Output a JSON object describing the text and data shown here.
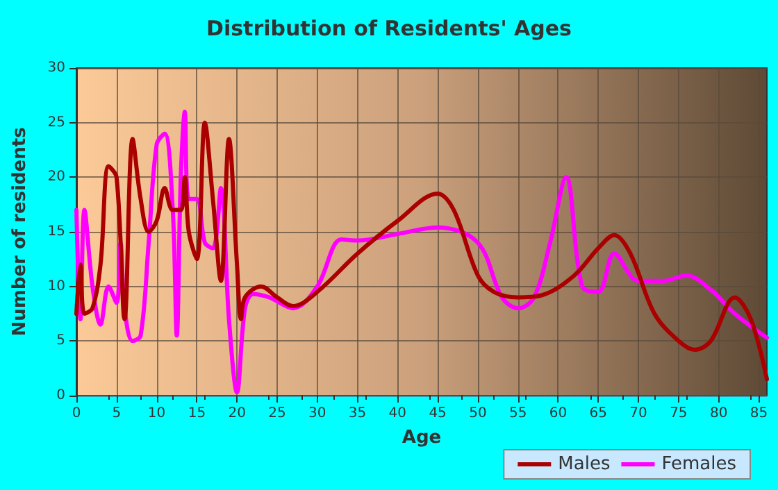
{
  "chart_data": {
    "type": "line",
    "title": "Distribution of Residents' Ages",
    "xlabel": "Age",
    "ylabel": "Number of residents",
    "xlim": [
      0,
      86
    ],
    "xticks": [
      0,
      5,
      10,
      15,
      20,
      25,
      30,
      35,
      40,
      45,
      50,
      55,
      60,
      65,
      70,
      75,
      80,
      85
    ],
    "ylim": [
      0,
      30
    ],
    "yticks": [
      0,
      5,
      10,
      15,
      20,
      25,
      30
    ],
    "grid": true,
    "legend": "bottom right",
    "marker": "none",
    "line_style": "solid",
    "series": [
      {
        "name": "Males",
        "color": "#aa0000",
        "x": [
          0,
          0.5,
          1,
          2,
          3,
          4,
          5,
          6,
          7,
          8,
          9,
          10,
          11,
          12,
          13,
          13.5,
          14,
          15,
          16,
          17,
          18,
          19,
          20,
          20.5,
          21,
          23,
          25,
          27,
          30,
          35,
          40,
          45,
          47,
          50,
          52,
          55,
          58,
          62,
          65,
          67,
          69,
          72,
          75,
          77,
          79,
          82,
          84,
          86
        ],
        "values": [
          7.5,
          12,
          7.5,
          8,
          12,
          21,
          20,
          7,
          23.5,
          18,
          15,
          16,
          19,
          17,
          17,
          20,
          15,
          12.5,
          25,
          18,
          10.5,
          23.5,
          12,
          7,
          9,
          10,
          9,
          8.2,
          9.5,
          13,
          16,
          18.5,
          17,
          11,
          9.5,
          9,
          9.2,
          11,
          13.5,
          14.7,
          13,
          7.5,
          5,
          4.2,
          5,
          9,
          7,
          1.5
        ]
      },
      {
        "name": "Females",
        "color": "#ff00ff",
        "x": [
          0,
          0.5,
          1,
          2,
          3,
          4,
          5,
          5.5,
          6,
          7,
          8,
          9,
          10,
          11,
          12,
          12.5,
          13,
          13.5,
          14,
          15,
          16,
          17,
          18,
          19,
          20,
          21,
          22,
          24,
          27,
          30,
          33,
          35,
          40,
          45,
          50,
          53,
          55,
          57,
          59,
          61,
          63,
          65,
          67,
          70,
          73,
          76,
          79,
          82,
          86
        ],
        "values": [
          17,
          7,
          17,
          10,
          6.5,
          10,
          8.5,
          14,
          8,
          5,
          5.5,
          14,
          23,
          24,
          17,
          5.5,
          20,
          26,
          18,
          18,
          14,
          13.5,
          19,
          7,
          0.3,
          8,
          9.3,
          9,
          8,
          10,
          14.3,
          14.2,
          14.8,
          15.4,
          14,
          9,
          8,
          9,
          14,
          20,
          10,
          9.5,
          13,
          10.5,
          10.5,
          11,
          9.7,
          7.5,
          5.3
        ]
      }
    ]
  }
}
